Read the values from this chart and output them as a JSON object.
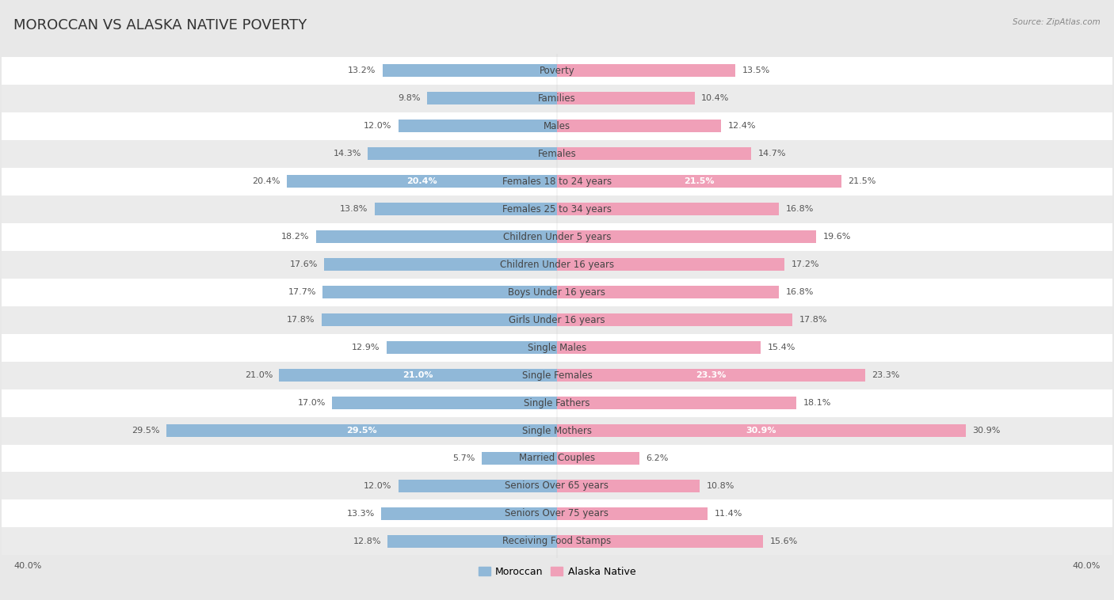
{
  "title": "MOROCCAN VS ALASKA NATIVE POVERTY",
  "source": "Source: ZipAtlas.com",
  "categories": [
    "Poverty",
    "Families",
    "Males",
    "Females",
    "Females 18 to 24 years",
    "Females 25 to 34 years",
    "Children Under 5 years",
    "Children Under 16 years",
    "Boys Under 16 years",
    "Girls Under 16 years",
    "Single Males",
    "Single Females",
    "Single Fathers",
    "Single Mothers",
    "Married Couples",
    "Seniors Over 65 years",
    "Seniors Over 75 years",
    "Receiving Food Stamps"
  ],
  "moroccan": [
    13.2,
    9.8,
    12.0,
    14.3,
    20.4,
    13.8,
    18.2,
    17.6,
    17.7,
    17.8,
    12.9,
    21.0,
    17.0,
    29.5,
    5.7,
    12.0,
    13.3,
    12.8
  ],
  "alaska_native": [
    13.5,
    10.4,
    12.4,
    14.7,
    21.5,
    16.8,
    19.6,
    17.2,
    16.8,
    17.8,
    15.4,
    23.3,
    18.1,
    30.9,
    6.2,
    10.8,
    11.4,
    15.6
  ],
  "moroccan_color": "#90b8d8",
  "alaska_native_color": "#f0a0b8",
  "moroccan_label": "Moroccan",
  "alaska_native_label": "Alaska Native",
  "xlim": 40.0,
  "background_color": "#e8e8e8",
  "row_colors": [
    "#ffffff",
    "#ebebeb"
  ],
  "title_fontsize": 13,
  "label_fontsize": 8.5,
  "value_fontsize": 8.0,
  "inside_threshold": 20.0
}
